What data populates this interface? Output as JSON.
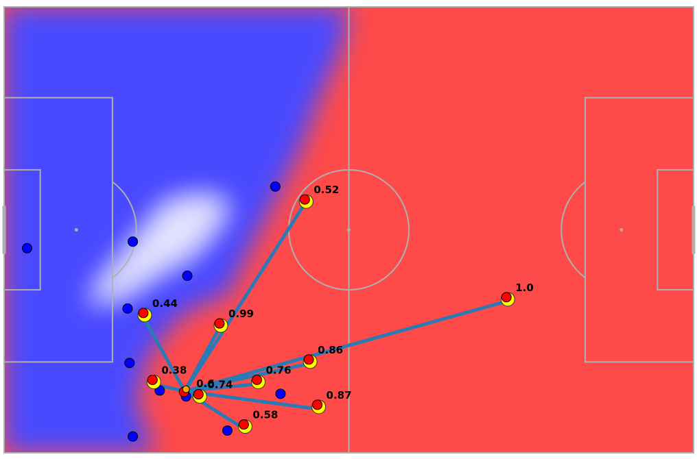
{
  "colors": {
    "team_blue": "#0000ff",
    "team_red": "#ff0000",
    "highlight_yellow": "#ffff00",
    "ball_orange": "#ffa500",
    "pass_line": "#2a7ab5",
    "pitch_lines": "#b0b0b0",
    "control_blue": "#4a4aff",
    "control_red": "#ff4a4a"
  },
  "chart_data": {
    "type": "scatter",
    "title": "",
    "xlabel": "",
    "ylabel": "",
    "xlim": [
      0,
      105
    ],
    "ylim": [
      0,
      68
    ],
    "grid": false,
    "pitch": {
      "length": 105,
      "width": 68,
      "center_circle_radius": 9.15,
      "penalty_box_depth": 16.5,
      "penalty_box_width": 40.3,
      "six_yard_box_depth": 5.5,
      "six_yard_box_width": 18.3,
      "penalty_spot_distance": 11
    },
    "pitch_control_surface": {
      "description_colors": [
        "control_blue",
        "white",
        "control_red"
      ],
      "blue_region_polygon": [
        [
          0,
          68
        ],
        [
          52.5,
          68
        ],
        [
          51.5,
          62
        ],
        [
          48,
          54
        ],
        [
          45,
          46
        ],
        [
          42,
          40
        ],
        [
          39,
          34
        ],
        [
          36,
          28
        ],
        [
          34,
          24
        ],
        [
          31,
          23
        ],
        [
          27,
          21
        ],
        [
          22,
          15
        ],
        [
          20,
          8
        ],
        [
          23,
          0
        ],
        [
          0,
          0
        ]
      ],
      "blue_pocket": [
        [
          18,
          24
        ],
        [
          24,
          28
        ],
        [
          28,
          30
        ],
        [
          31,
          33
        ],
        [
          33,
          36
        ],
        [
          34,
          38
        ],
        [
          30,
          39
        ],
        [
          25,
          38
        ],
        [
          20,
          32
        ],
        [
          15,
          26
        ],
        [
          13,
          23
        ]
      ]
    },
    "ball": {
      "x": 27.7,
      "y": 9.7
    },
    "ball_carrier": {
      "x": 27.5,
      "y": 9.4
    },
    "blue_players": [
      {
        "x": 3.5,
        "y": 31.2
      },
      {
        "x": 19.6,
        "y": 32.2
      },
      {
        "x": 41.3,
        "y": 40.6
      },
      {
        "x": 27.9,
        "y": 27.0
      },
      {
        "x": 18.8,
        "y": 22.0
      },
      {
        "x": 19.1,
        "y": 13.7
      },
      {
        "x": 23.7,
        "y": 9.5
      },
      {
        "x": 27.7,
        "y": 8.6
      },
      {
        "x": 42.1,
        "y": 9.0
      },
      {
        "x": 34.0,
        "y": 3.4
      },
      {
        "x": 19.6,
        "y": 2.5
      }
    ],
    "pass_options": [
      {
        "x": 45.8,
        "y": 38.0,
        "label": "0.52"
      },
      {
        "x": 21.2,
        "y": 20.7,
        "label": "0.44"
      },
      {
        "x": 32.8,
        "y": 19.1,
        "label": "0.99"
      },
      {
        "x": 46.4,
        "y": 13.6,
        "label": "0.86"
      },
      {
        "x": 22.6,
        "y": 10.5,
        "label": "0.38"
      },
      {
        "x": 38.5,
        "y": 10.5,
        "label": "0.76"
      },
      {
        "x": 29.6,
        "y": 8.3,
        "label": "0.74"
      },
      {
        "x": 47.7,
        "y": 6.7,
        "label": "0.87"
      },
      {
        "x": 36.5,
        "y": 3.7,
        "label": "0.58"
      },
      {
        "x": 76.5,
        "y": 23.1,
        "label": "1.0"
      }
    ],
    "pass_option_extra_labels": [
      {
        "near": "ball",
        "label": "0.6"
      }
    ]
  }
}
